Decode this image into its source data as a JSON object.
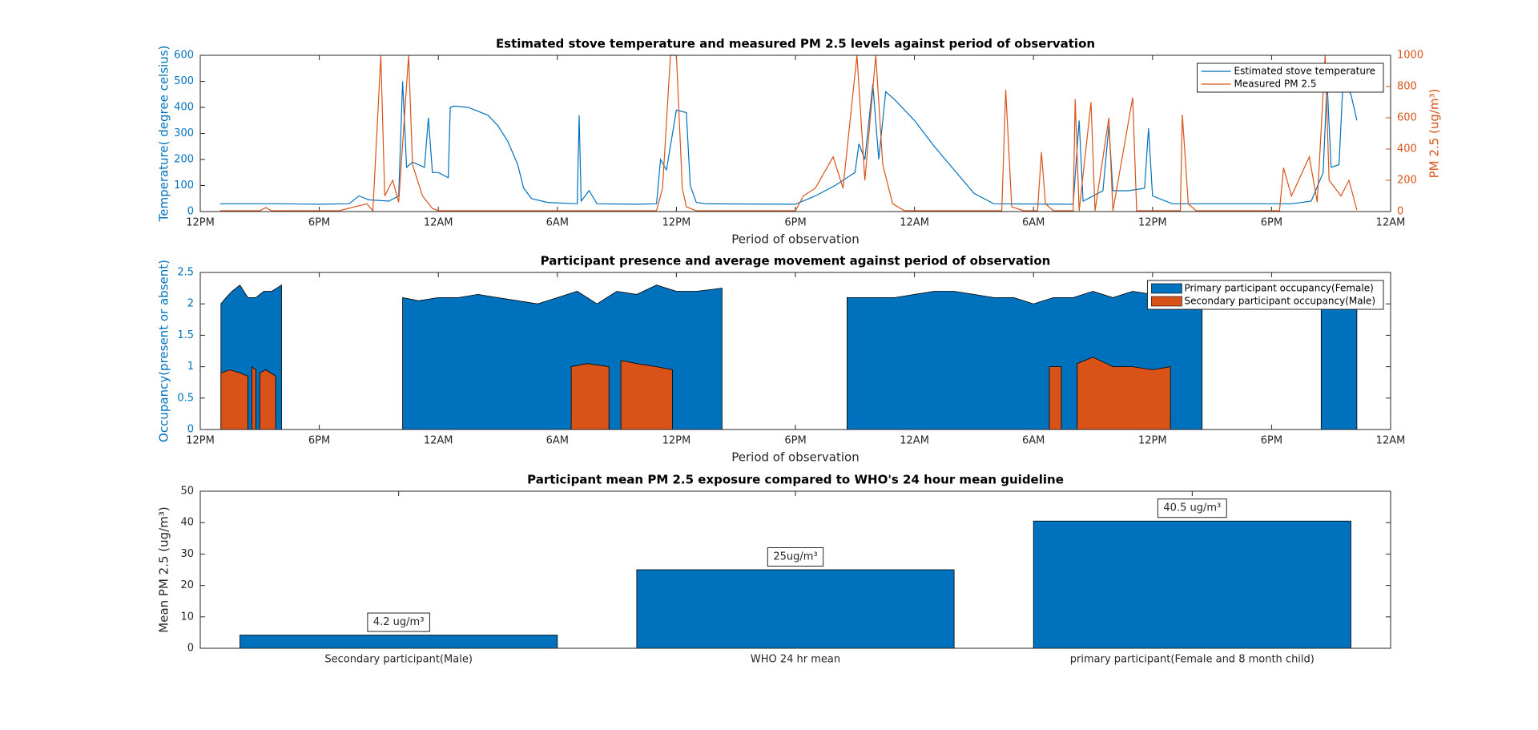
{
  "chart_data": [
    {
      "type": "line",
      "title": "Estimated stove temperature and measured PM 2.5 levels against period of observation",
      "x_label": "Period of observation",
      "y_label": "Temperature( degree celsius)",
      "y2_label": "PM 2.5 (ug/m³)",
      "xlim": [
        0,
        60
      ],
      "xticks": [
        {
          "value": 0,
          "label": "12PM"
        },
        {
          "value": 6,
          "label": "6PM"
        },
        {
          "value": 12,
          "label": "12AM"
        },
        {
          "value": 18,
          "label": "6AM"
        },
        {
          "value": 24,
          "label": "12PM"
        },
        {
          "value": 30,
          "label": "6PM"
        },
        {
          "value": 36,
          "label": "12AM"
        },
        {
          "value": 42,
          "label": "6AM"
        },
        {
          "value": 48,
          "label": "12PM"
        },
        {
          "value": 54,
          "label": "6PM"
        },
        {
          "value": 60,
          "label": "12AM"
        }
      ],
      "ylim": [
        0,
        600
      ],
      "yticks": [
        0,
        100,
        200,
        300,
        400,
        500,
        600
      ],
      "y2lim": [
        0,
        1000
      ],
      "y2ticks": [
        0,
        200,
        400,
        600,
        800,
        1000
      ],
      "legend": "northeast",
      "series": [
        {
          "name": "Estimated stove temperature",
          "color": "#0072bd",
          "x": [
            1,
            2,
            4,
            6,
            7.5,
            8,
            8.5,
            9.5,
            10,
            10.2,
            10.4,
            10.7,
            11,
            11.3,
            11.5,
            11.7,
            12,
            12.5,
            12.6,
            12.8,
            13.5,
            14.5,
            15,
            15.5,
            16,
            16.3,
            16.7,
            17.5,
            19,
            19.1,
            19.2,
            19.6,
            20,
            22,
            23,
            23.2,
            23.5,
            24,
            24.5,
            24.7,
            25,
            25.5,
            30,
            31,
            32,
            33,
            33.2,
            33.5,
            33.9,
            34.2,
            34.55,
            35,
            36,
            37,
            38,
            39,
            40,
            44,
            44.3,
            44.5,
            45.5,
            45.8,
            46,
            46.8,
            47.6,
            47.8,
            48,
            49,
            55,
            56,
            56.6,
            56.8,
            57,
            57.4,
            57.6,
            58,
            58.3
          ],
          "values": [
            30,
            30,
            30,
            28,
            30,
            60,
            45,
            40,
            60,
            500,
            170,
            190,
            180,
            170,
            360,
            150,
            150,
            130,
            400,
            405,
            400,
            370,
            330,
            270,
            180,
            90,
            50,
            35,
            30,
            370,
            40,
            80,
            30,
            28,
            30,
            200,
            160,
            390,
            380,
            100,
            35,
            30,
            28,
            60,
            100,
            150,
            260,
            200,
            490,
            200,
            460,
            430,
            350,
            250,
            160,
            70,
            30,
            28,
            350,
            40,
            80,
            330,
            80,
            80,
            90,
            320,
            60,
            30,
            30,
            40,
            150,
            500,
            170,
            180,
            500,
            450,
            350
          ]
        },
        {
          "name": "Measured PM 2.5",
          "color": "#d95319",
          "axis": "y2",
          "x": [
            1,
            3,
            3.3,
            3.6,
            7,
            8.4,
            8.7,
            9.1,
            9.3,
            9.7,
            10,
            10.5,
            10.7,
            11.2,
            11.7,
            12,
            23,
            23.3,
            23.7,
            24,
            24.3,
            24.5,
            25,
            30,
            30.4,
            31,
            31.9,
            32.4,
            33.1,
            33.5,
            34.05,
            34.4,
            34.9,
            35.5,
            40.4,
            40.6,
            40.9,
            41.5,
            42.2,
            42.4,
            42.6,
            43,
            44,
            44.1,
            44.3,
            44.9,
            45.1,
            45.8,
            46,
            47,
            47.2,
            49.4,
            49.5,
            49.8,
            50.2,
            54.4,
            54.6,
            55,
            55.9,
            56.3,
            56.7,
            56.9,
            57.5,
            57.9,
            58.3
          ],
          "values": [
            5,
            5,
            25,
            5,
            5,
            50,
            5,
            1000,
            100,
            200,
            60,
            1000,
            300,
            100,
            20,
            5,
            5,
            150,
            1000,
            1000,
            150,
            30,
            5,
            5,
            100,
            150,
            350,
            150,
            1000,
            200,
            1000,
            300,
            50,
            5,
            5,
            780,
            30,
            5,
            5,
            380,
            50,
            5,
            5,
            720,
            5,
            700,
            5,
            600,
            5,
            730,
            5,
            5,
            620,
            50,
            5,
            5,
            280,
            100,
            350,
            60,
            1000,
            200,
            100,
            200,
            10
          ]
        }
      ]
    },
    {
      "type": "area",
      "title": "Participant presence and average movement against period of observation",
      "x_label": "Period of observation",
      "y_label": "Occupancy(present or absent)",
      "xlim": [
        0,
        60
      ],
      "xticks": [
        {
          "value": 0,
          "label": "12PM"
        },
        {
          "value": 6,
          "label": "6PM"
        },
        {
          "value": 12,
          "label": "12AM"
        },
        {
          "value": 18,
          "label": "6AM"
        },
        {
          "value": 24,
          "label": "12PM"
        },
        {
          "value": 30,
          "label": "6PM"
        },
        {
          "value": 36,
          "label": "12AM"
        },
        {
          "value": 42,
          "label": "6AM"
        },
        {
          "value": 48,
          "label": "12PM"
        },
        {
          "value": 54,
          "label": "6PM"
        },
        {
          "value": 60,
          "label": "12AM"
        }
      ],
      "ylim": [
        0,
        2.5
      ],
      "yticks": [
        0,
        0.5,
        1,
        1.5,
        2,
        2.5
      ],
      "legend": "northeast",
      "series": [
        {
          "name": "Primary participant occupancy(Female)",
          "color": "#0072bd",
          "x": [
            1.04,
            1.3,
            1.6,
            2,
            2.4,
            2.8,
            3.2,
            3.6,
            4.1,
            7,
            10.2,
            11,
            12,
            13,
            14,
            15,
            16,
            17,
            18,
            19,
            20,
            21,
            22,
            23,
            24,
            25,
            26.3,
            30,
            32.6,
            34,
            35,
            36,
            37,
            38,
            39,
            40,
            41,
            42,
            43,
            44,
            45,
            46,
            47,
            48,
            49,
            50.5,
            53,
            56.5,
            57,
            57.5,
            58,
            58.3
          ],
          "values": [
            2.0,
            2.1,
            2.2,
            2.3,
            2.1,
            2.1,
            2.2,
            2.2,
            2.3,
            null,
            2.1,
            2.05,
            2.1,
            2.1,
            2.15,
            2.1,
            2.05,
            2.0,
            2.1,
            2.2,
            2.0,
            2.2,
            2.15,
            2.3,
            2.2,
            2.2,
            2.25,
            null,
            2.1,
            2.1,
            2.1,
            2.15,
            2.2,
            2.2,
            2.15,
            2.1,
            2.1,
            2.0,
            2.1,
            2.1,
            2.2,
            2.1,
            2.2,
            2.15,
            2.1,
            2.1,
            null,
            1.95,
            1.95,
            1.95,
            1.95,
            1.95
          ]
        },
        {
          "name": "Secondary participant occupancy(Male)",
          "color": "#d95319",
          "x": [
            1.04,
            1.5,
            2,
            2.4,
            2.5,
            2.6,
            2.8,
            2.9,
            3.0,
            3.3,
            3.8,
            10,
            18.7,
            19.5,
            20.6,
            20.9,
            21.2,
            22,
            23,
            23.8,
            30,
            42.8,
            43.4,
            43.8,
            44.2,
            45,
            46,
            47,
            48,
            48.9
          ],
          "values": [
            0.9,
            0.95,
            0.9,
            0.85,
            null,
            1.0,
            0.95,
            null,
            0.9,
            0.95,
            0.85,
            null,
            1.0,
            1.05,
            1.0,
            null,
            1.1,
            1.05,
            1.0,
            0.95,
            null,
            1.0,
            1.0,
            null,
            1.05,
            1.15,
            1.0,
            1.0,
            0.95,
            1.0
          ]
        }
      ]
    },
    {
      "type": "bar",
      "title": "Participant mean PM 2.5 exposure compared to WHO's 24 hour mean guideline",
      "y_label": "Mean PM 2.5 (ug/m³)",
      "categories": [
        "Secondary participant(Male)",
        "WHO 24 hr mean",
        "primary participant(Female and 8 month child)"
      ],
      "values": [
        4.2,
        25,
        40.5
      ],
      "value_labels": [
        "4.2 ug/m³",
        "25ug/m³",
        "40.5 ug/m³"
      ],
      "color": "#0072bd",
      "ylim": [
        0,
        50
      ],
      "yticks": [
        0,
        10,
        20,
        30,
        40,
        50
      ]
    }
  ]
}
